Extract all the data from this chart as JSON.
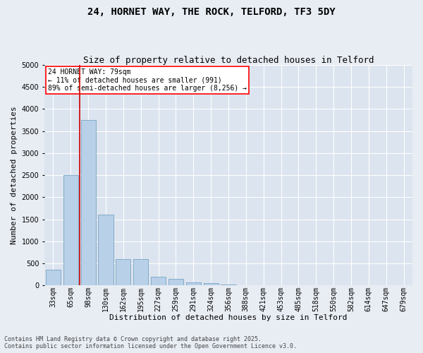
{
  "title_line1": "24, HORNET WAY, THE ROCK, TELFORD, TF3 5DY",
  "title_line2": "Size of property relative to detached houses in Telford",
  "xlabel": "Distribution of detached houses by size in Telford",
  "ylabel": "Number of detached properties",
  "categories": [
    "33sqm",
    "65sqm",
    "98sqm",
    "130sqm",
    "162sqm",
    "195sqm",
    "227sqm",
    "259sqm",
    "291sqm",
    "324sqm",
    "356sqm",
    "388sqm",
    "421sqm",
    "453sqm",
    "485sqm",
    "518sqm",
    "550sqm",
    "582sqm",
    "614sqm",
    "647sqm",
    "679sqm"
  ],
  "values": [
    350,
    2500,
    3750,
    1600,
    600,
    600,
    200,
    150,
    60,
    50,
    20,
    5,
    5,
    3,
    2,
    2,
    1,
    1,
    1,
    1,
    1
  ],
  "bar_color": "#b8d0e8",
  "bar_edge_color": "#6699bb",
  "highlight_color": "#cc0000",
  "vline_x": 1.5,
  "ylim": [
    0,
    5000
  ],
  "annotation_text": "24 HORNET WAY: 79sqm\n← 11% of detached houses are smaller (991)\n89% of semi-detached houses are larger (8,256) →",
  "footer_line1": "Contains HM Land Registry data © Crown copyright and database right 2025.",
  "footer_line2": "Contains public sector information licensed under the Open Government Licence v3.0.",
  "bg_color": "#e8edf4",
  "plot_bg_color": "#dce4ef",
  "grid_color": "#ffffff",
  "title_fontsize": 10,
  "subtitle_fontsize": 9,
  "tick_fontsize": 7,
  "ylabel_fontsize": 8,
  "xlabel_fontsize": 8,
  "footer_fontsize": 6,
  "annot_fontsize": 7
}
